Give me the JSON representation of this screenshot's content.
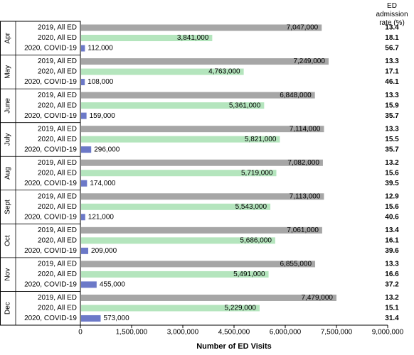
{
  "chart_data": {
    "type": "grouped-bar-horizontal",
    "categories": [
      "Apr",
      "May",
      "June",
      "July",
      "Aug",
      "Sept",
      "Oct",
      "Nov",
      "Dec"
    ],
    "x_label": "Number of ED Visits",
    "rate_label": "ED admission rate (%)",
    "xlim": [
      0,
      9000000
    ],
    "xticks": [
      0,
      {
        "value": 1500000,
        "label": "1,500,000"
      },
      {
        "value": 3000000,
        "label": "3,000,000"
      },
      {
        "value": 4500000,
        "label": "4,500,000"
      },
      {
        "value": 6000000,
        "label": "6,000,000"
      },
      {
        "value": 7500000,
        "label": "7,500,000"
      },
      {
        "value": 9000000,
        "label": "9,000,000"
      }
    ],
    "series": [
      {
        "name": "2019, All ED",
        "color": "#a6a6a6",
        "values": [
          7047000,
          7249000,
          6848000,
          7114000,
          7082000,
          7113000,
          7061000,
          6855000,
          7479000
        ],
        "value_labels": [
          "7,047,000",
          "7,249,000",
          "6,848,000",
          "7,114,000",
          "7,082,000",
          "7,113,000",
          "7,061,000",
          "6,855,000",
          "7,479,000"
        ],
        "admission_rates": [
          13.4,
          13.3,
          13.3,
          13.3,
          13.2,
          12.9,
          13.4,
          13.3,
          13.2
        ]
      },
      {
        "name": "2020, All ED",
        "color": "#b4e5bd",
        "values": [
          3841000,
          4763000,
          5361000,
          5821000,
          5719000,
          5543000,
          5686000,
          5491000,
          5229000
        ],
        "value_labels": [
          "3,841,000",
          "4,763,000",
          "5,361,000",
          "5,821,000",
          "5,719,000",
          "5,543,000",
          "5,686,000",
          "5,491,000",
          "5,229,000"
        ],
        "admission_rates": [
          18.1,
          17.1,
          15.9,
          15.5,
          15.6,
          15.6,
          16.1,
          16.6,
          15.1
        ]
      },
      {
        "name": "2020, COVID-19",
        "color": "#6c79c8",
        "values": [
          112000,
          108000,
          159000,
          296000,
          174000,
          121000,
          209000,
          455000,
          573000
        ],
        "value_labels": [
          "112,000",
          "108,000",
          "159,000",
          "296,000",
          "174,000",
          "121,000",
          "209,000",
          "455,000",
          "573,000"
        ],
        "admission_rates": [
          56.7,
          46.1,
          35.7,
          35.7,
          39.5,
          40.6,
          39.6,
          37.2,
          31.4
        ]
      }
    ]
  }
}
